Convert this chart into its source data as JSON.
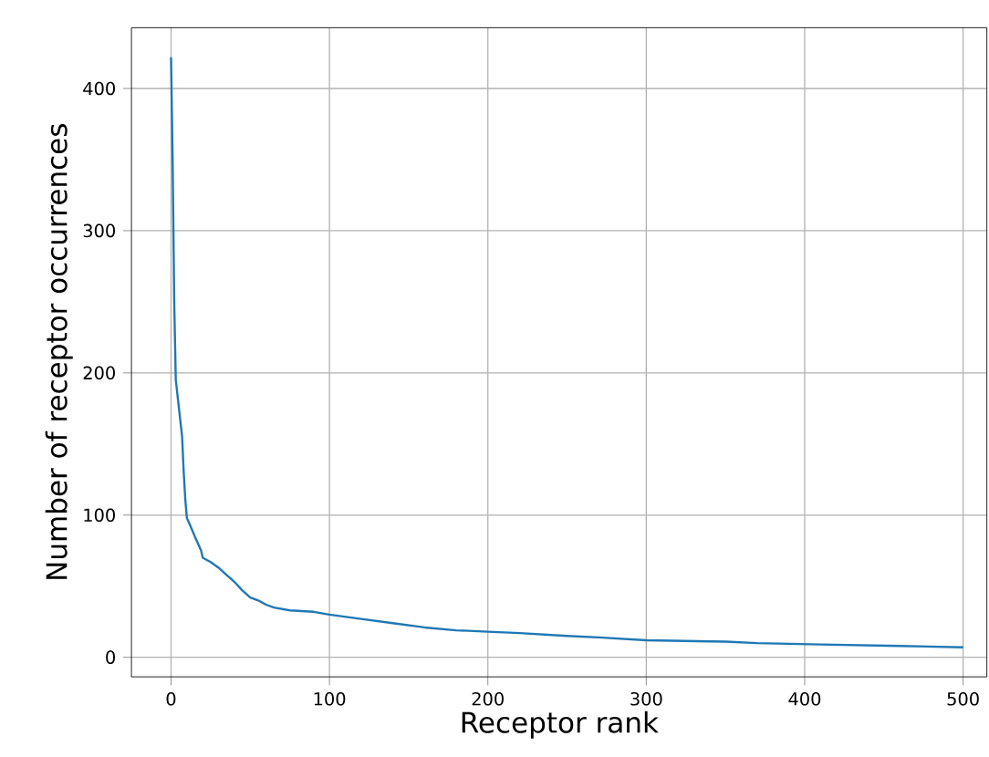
{
  "chart_data": {
    "type": "line",
    "xlabel": "Receptor rank",
    "ylabel": "Number of receptor occurrences",
    "x": [
      0,
      1,
      2,
      3,
      5,
      7,
      8,
      9,
      10,
      12,
      15,
      19,
      20,
      25,
      30,
      35,
      40,
      45,
      50,
      55,
      60,
      65,
      75,
      90,
      100,
      120,
      140,
      160,
      180,
      200,
      220,
      250,
      270,
      300,
      350,
      370,
      410,
      460,
      500
    ],
    "series": [
      {
        "color": "#1f77b4",
        "values": [
          422,
          350,
          250,
          195,
          175,
          155,
          130,
          111,
          98,
          93,
          85,
          75,
          70,
          67,
          63,
          58,
          53,
          47,
          42,
          40,
          37,
          35,
          33,
          32,
          30,
          27,
          24,
          21,
          19,
          18,
          17,
          15,
          14,
          12,
          11,
          10,
          9,
          8,
          7
        ]
      }
    ],
    "xlim": [
      -25,
      515
    ],
    "ylim": [
      -13.75,
      442.75
    ],
    "xticks": [
      0,
      100,
      200,
      300,
      400,
      500
    ],
    "yticks": [
      0,
      100,
      200,
      300,
      400
    ],
    "grid": true,
    "marker": "none",
    "line_style": "solid"
  }
}
